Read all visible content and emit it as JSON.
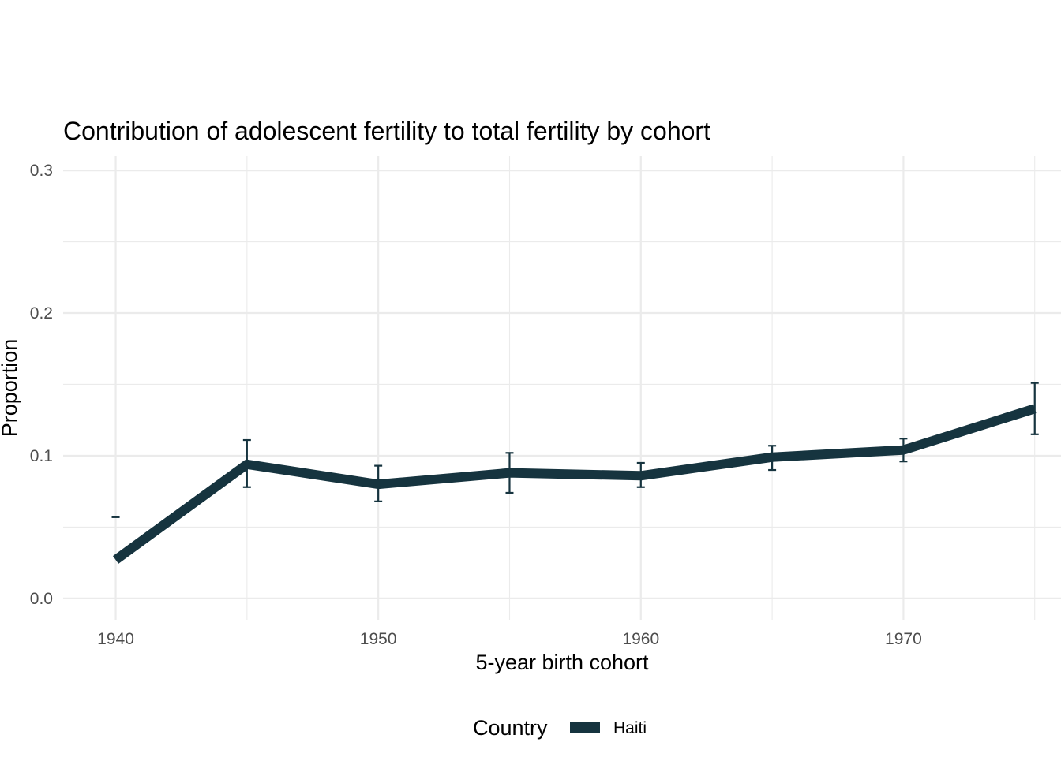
{
  "chart_data": {
    "type": "line",
    "title": "Contribution of adolescent fertility to total fertility by cohort",
    "xlabel": "5-year birth cohort",
    "ylabel": "Proportion",
    "xlim": [
      1938,
      1976
    ],
    "ylim": [
      -0.015,
      0.31
    ],
    "x_ticks": [
      1940,
      1950,
      1960,
      1970
    ],
    "x_tick_labels": [
      "1940",
      "1950",
      "1960",
      "1970"
    ],
    "y_ticks": [
      0.0,
      0.1,
      0.2,
      0.3
    ],
    "y_tick_labels": [
      "0.0",
      "0.1",
      "0.2",
      "0.3"
    ],
    "grid": true,
    "legend": {
      "title": "Country",
      "position": "bottom"
    },
    "series": [
      {
        "name": "Haiti",
        "color": "#16343f",
        "x": [
          1940,
          1945,
          1950,
          1955,
          1960,
          1965,
          1970,
          1975
        ],
        "y": [
          0.027,
          0.094,
          0.08,
          0.088,
          0.086,
          0.099,
          0.104,
          0.133
        ],
        "error_lower": [
          0.057,
          0.078,
          0.068,
          0.074,
          0.078,
          0.09,
          0.096,
          0.115
        ],
        "error_upper": [
          0.057,
          0.111,
          0.093,
          0.102,
          0.095,
          0.107,
          0.112,
          0.151
        ]
      }
    ]
  }
}
